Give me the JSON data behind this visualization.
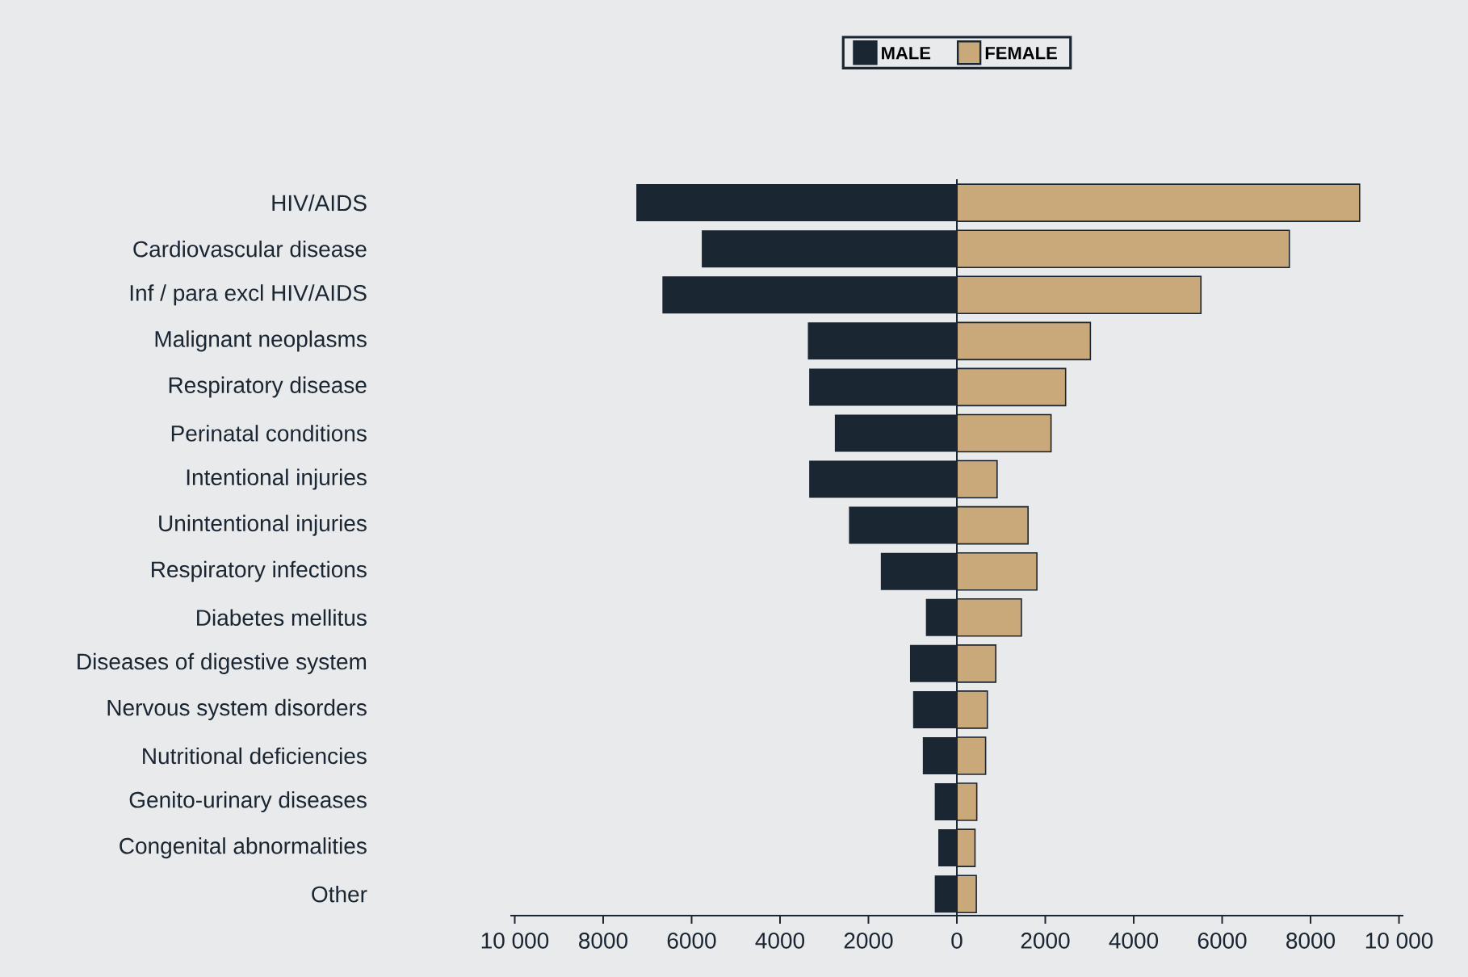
{
  "chart_data": {
    "type": "bar",
    "orientation": "horizontal",
    "legend": "top",
    "stacked": true,
    "categories": [
      "HIV/AIDS",
      "Cardiovascular disease",
      "Inf / para excl HIV/AIDS",
      "Malignant neoplasms",
      "Respiratory disease",
      "Perinatal conditions",
      "Intentional injuries",
      "Unintentional injuries",
      "Respiratory infections",
      "Diabetes mellitus",
      "Diseases of digestive system",
      "Nervous system disorders",
      "Nutritional deficiencies",
      "Genito-urinary diseases",
      "Congenital abnormalities",
      "Other"
    ],
    "series": [
      {
        "name": "MALE",
        "color": "#1b2633",
        "values": [
          -7250,
          -5770,
          -6660,
          -3370,
          -3340,
          -2760,
          -3340,
          -2440,
          -1720,
          -700,
          -1060,
          -990,
          -770,
          -500,
          -420,
          -500
        ]
      },
      {
        "name": "FEMALE",
        "color": "#c9a87a",
        "values": [
          9110,
          7520,
          5520,
          3020,
          2460,
          2130,
          910,
          1610,
          1810,
          1460,
          880,
          690,
          650,
          450,
          410,
          440
        ]
      }
    ],
    "xlim": [
      -10100,
      10100
    ],
    "xticks": [
      {
        "value": -10000,
        "label": "10 000"
      },
      {
        "value": -8000,
        "label": "8000"
      },
      {
        "value": -6000,
        "label": "6000"
      },
      {
        "value": -4000,
        "label": "4000"
      },
      {
        "value": -2000,
        "label": "2000"
      },
      0,
      2000,
      4000,
      6000,
      8000,
      {
        "value": 10000,
        "label": "10 000"
      }
    ],
    "ref_lines": [
      {
        "axis": "x",
        "value": 0,
        "color": "#1b2633"
      }
    ]
  }
}
